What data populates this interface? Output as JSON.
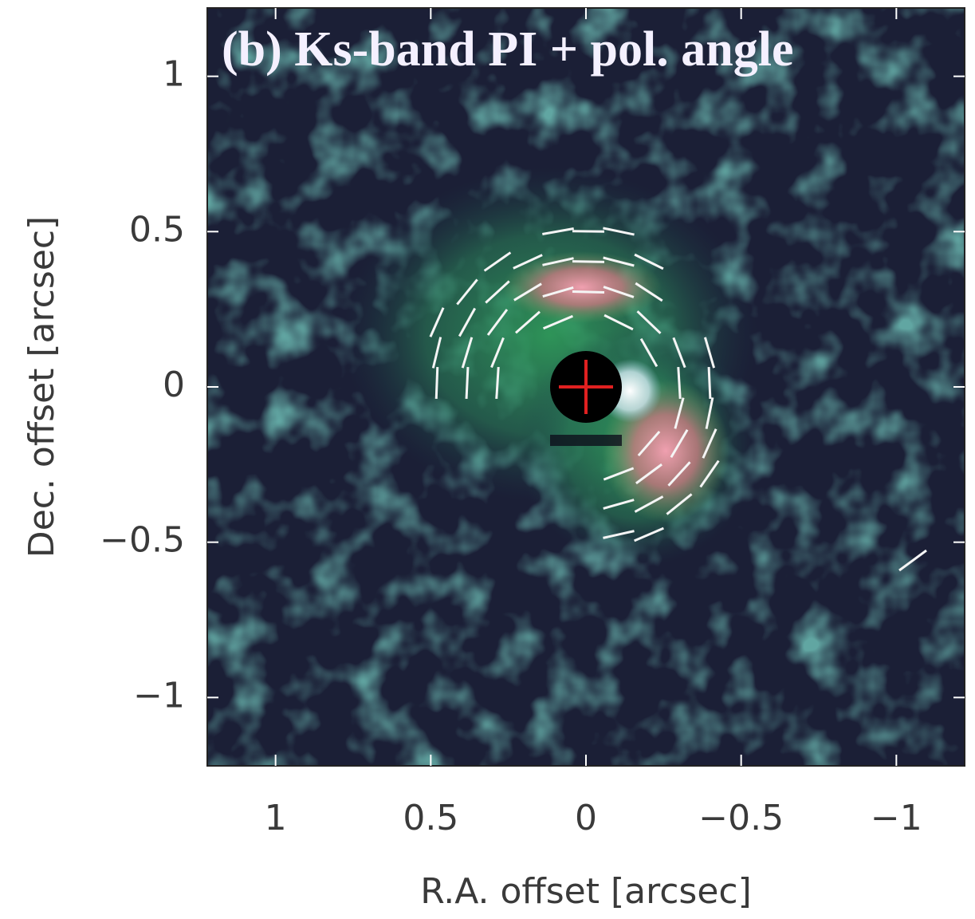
{
  "chart_data": {
    "type": "image",
    "title": "(b) Ks-band PI + pol. angle",
    "xlabel": "R.A. offset [arcsec]",
    "ylabel": "Dec. offset [arcsec]",
    "xlim": [
      1.22,
      -1.22
    ],
    "ylim": [
      -1.22,
      1.22
    ],
    "xticks": [
      1,
      0.5,
      0,
      {
        "value": -0.5,
        "label": "−0.5"
      },
      {
        "value": -1,
        "label": "−1"
      }
    ],
    "yticks": [
      {
        "value": -1,
        "label": "−1"
      },
      {
        "value": -0.5,
        "label": "−0.5"
      },
      0,
      0.5,
      1
    ],
    "markers": {
      "x": [
        0
      ],
      "y": [
        0
      ],
      "color": "#e02020"
    }
  }
}
